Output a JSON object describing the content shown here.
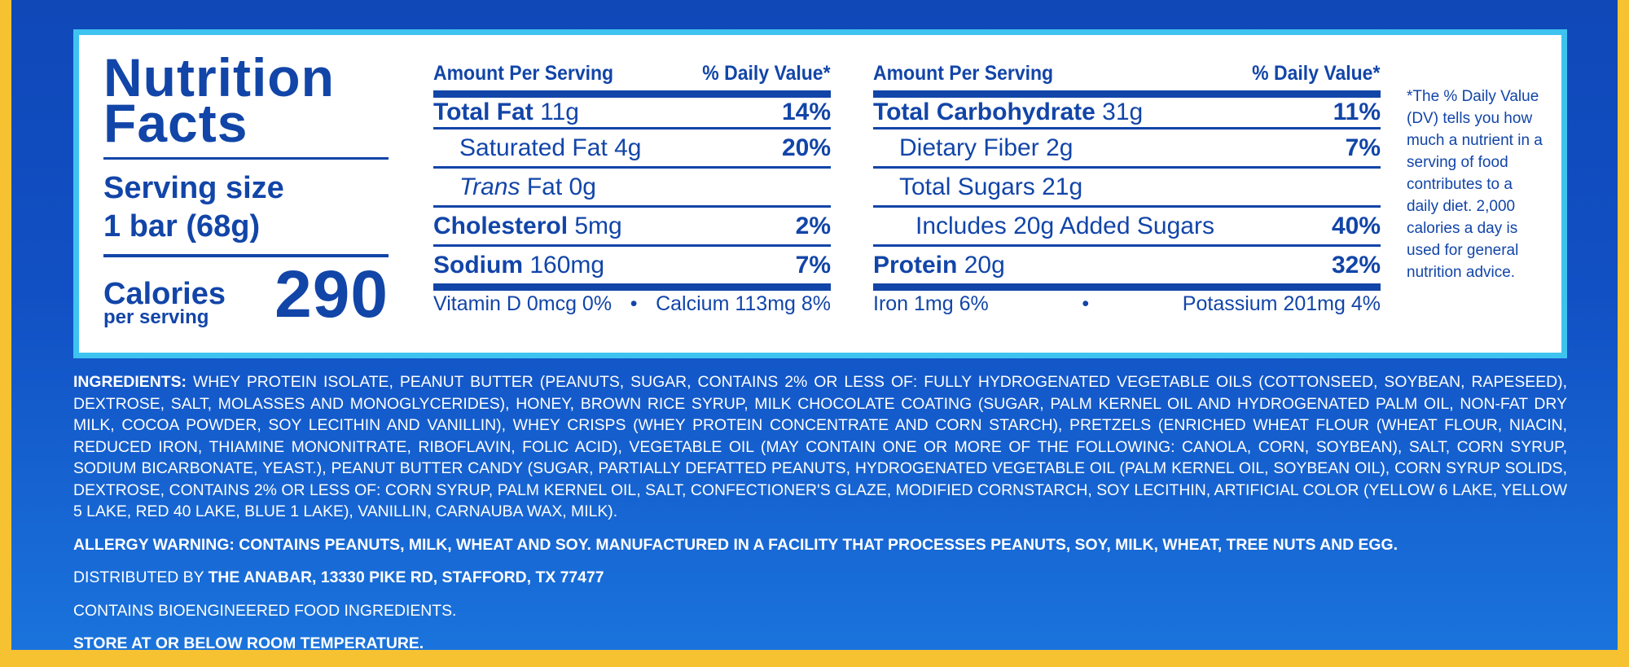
{
  "title_line1": "Nutrition",
  "title_line2": "Facts",
  "serving_size_label": "Serving size",
  "serving_size_value": "1 bar (68g)",
  "calories_label": "Calories",
  "calories_sublabel": "per serving",
  "calories_value": "290",
  "left_column": {
    "header_amount": "Amount Per Serving",
    "header_dv": "% Daily Value*",
    "rows": [
      {
        "name": "Total Fat",
        "amount": "11g",
        "dv": "14%"
      },
      {
        "name": "Saturated Fat",
        "amount": "4g",
        "dv": "20%"
      },
      {
        "name": "Trans",
        "name_suffix": "Fat",
        "amount": "0g",
        "dv": ""
      },
      {
        "name": "Cholesterol",
        "amount": "5mg",
        "dv": "2%"
      },
      {
        "name": "Sodium",
        "amount": "160mg",
        "dv": "7%"
      }
    ],
    "footer_left": "Vitamin D 0mcg 0%",
    "footer_separator": "•",
    "footer_right": "Calcium 113mg 8%"
  },
  "right_column": {
    "header_amount": "Amount Per Serving",
    "header_dv": "% Daily Value*",
    "rows": [
      {
        "name": "Total Carbohydrate",
        "amount": "31g",
        "dv": "11%"
      },
      {
        "name": "Dietary Fiber",
        "amount": "2g",
        "dv": "7%"
      },
      {
        "name": "Total Sugars",
        "amount": "21g",
        "dv": ""
      },
      {
        "name": "Includes 20g Added Sugars",
        "amount": "",
        "dv": "40%"
      },
      {
        "name": "Protein",
        "amount": "20g",
        "dv": "32%"
      }
    ],
    "footer_left": "Iron 1mg 6%",
    "footer_separator": "•",
    "footer_right": "Potassium 201mg 4%"
  },
  "footnote": "*The % Daily Value (DV) tells you how much a nutrient in a serving of food contributes to a daily diet. 2,000 calories a day is used for general nutrition advice.",
  "ingredients_label": "INGREDIENTS:",
  "ingredients_text": "WHEY PROTEIN ISOLATE, PEANUT BUTTER (PEANUTS, SUGAR, CONTAINS 2% OR LESS OF: FULLY HYDROGENATED VEGETABLE OILS (COTTONSEED, SOYBEAN, RAPESEED), DEXTROSE, SALT, MOLASSES AND MONOGLYCERIDES), HONEY, BROWN RICE SYRUP, MILK CHOCOLATE COATING (SUGAR, PALM KERNEL OIL AND HYDROGENATED PALM OIL, NON-FAT DRY MILK, COCOA POWDER, SOY LECITHIN AND VANILLIN), WHEY CRISPS (WHEY PROTEIN CONCENTRATE AND CORN STARCH), PRETZELS (ENRICHED WHEAT FLOUR (WHEAT FLOUR, NIACIN, REDUCED IRON, THIAMINE MONONITRATE, RIBOFLAVIN, FOLIC ACID), VEGETABLE OIL (MAY CONTAIN ONE OR MORE OF THE FOLLOWING: CANOLA, CORN, SOYBEAN), SALT, CORN SYRUP, SODIUM BICARBONATE, YEAST.), PEANUT BUTTER CANDY (SUGAR, PARTIALLY DEFATTED PEANUTS, HYDROGENATED VEGETABLE OIL (PALM KERNEL OIL, SOYBEAN OIL), CORN SYRUP SOLIDS, DEXTROSE, CONTAINS 2% OR LESS OF: CORN SYRUP, PALM KERNEL OIL, SALT, CONFECTIONER'S GLAZE, MODIFIED CORNSTARCH, SOY LECITHIN, ARTIFICIAL COLOR (YELLOW 6 LAKE, YELLOW 5 LAKE, RED 40 LAKE, BLUE 1 LAKE), VANILLIN, CARNAUBA WAX, MILK).",
  "allergy_warning": "ALLERGY WARNING: CONTAINS PEANUTS, MILK, WHEAT AND SOY. MANUFACTURED IN A FACILITY THAT PROCESSES PEANUTS, SOY, MILK, WHEAT, TREE NUTS AND EGG.",
  "distributed_label": "DISTRIBUTED BY",
  "distributed_value": "THE ANABAR, 13330 PIKE RD, STAFFORD, TX 77477",
  "bioengineered": "CONTAINS BIOENGINEERED FOOD INGREDIENTS.",
  "storage": "STORE AT OR BELOW ROOM TEMPERATURE.",
  "colors": {
    "background_blue": "#1150c4",
    "panel_border": "#3ec3f0",
    "text_blue": "#1245a8",
    "outer_yellow": "#f6c232"
  }
}
